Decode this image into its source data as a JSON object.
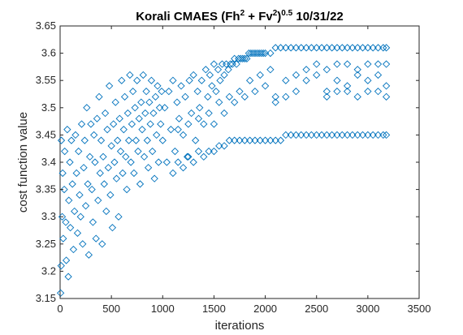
{
  "chart_data": {
    "type": "scatter",
    "title_parts": [
      {
        "text": "Korali CMAES (Fh",
        "sup": false
      },
      {
        "text": "2",
        "sup": true
      },
      {
        "text": " + Fv",
        "sup": false
      },
      {
        "text": "2",
        "sup": true
      },
      {
        "text": ")",
        "sup": false
      },
      {
        "text": "0.5",
        "sup": true
      },
      {
        "text": " 10/31/22",
        "sup": false
      }
    ],
    "xlabel": "iterations",
    "ylabel": "cost function value",
    "xlim": [
      0,
      3500
    ],
    "ylim": [
      3.15,
      3.65
    ],
    "xticks": [
      "0",
      "500",
      "1000",
      "1500",
      "2000",
      "2500",
      "3000",
      "3500"
    ],
    "yticks": [
      "3.15",
      "3.2",
      "3.25",
      "3.3",
      "3.35",
      "3.4",
      "3.45",
      "3.5",
      "3.55",
      "3.6",
      "3.65"
    ],
    "grid": false,
    "marker": "diamond",
    "color": "#0072BD",
    "series": [
      {
        "values": [
          [
            5,
            3.16
          ],
          [
            10,
            3.21
          ],
          [
            12,
            3.44
          ],
          [
            20,
            3.3
          ],
          [
            25,
            3.38
          ],
          [
            30,
            3.26
          ],
          [
            40,
            3.35
          ],
          [
            45,
            3.42
          ],
          [
            55,
            3.29
          ],
          [
            60,
            3.22
          ],
          [
            70,
            3.46
          ],
          [
            80,
            3.19
          ],
          [
            85,
            3.33
          ],
          [
            95,
            3.4
          ],
          [
            100,
            3.28
          ],
          [
            110,
            3.44
          ],
          [
            120,
            3.36
          ],
          [
            130,
            3.24
          ],
          [
            140,
            3.31
          ],
          [
            150,
            3.45
          ],
          [
            160,
            3.38
          ],
          [
            170,
            3.27
          ],
          [
            180,
            3.42
          ],
          [
            190,
            3.34
          ],
          [
            200,
            3.3
          ],
          [
            210,
            3.47
          ],
          [
            220,
            3.25
          ],
          [
            230,
            3.39
          ],
          [
            240,
            3.44
          ],
          [
            250,
            3.32
          ],
          [
            260,
            3.5
          ],
          [
            270,
            3.36
          ],
          [
            280,
            3.23
          ],
          [
            290,
            3.41
          ],
          [
            300,
            3.47
          ],
          [
            310,
            3.35
          ],
          [
            320,
            3.29
          ],
          [
            330,
            3.45
          ],
          [
            340,
            3.4
          ],
          [
            350,
            3.26
          ],
          [
            360,
            3.48
          ],
          [
            370,
            3.33
          ],
          [
            380,
            3.52
          ],
          [
            390,
            3.38
          ],
          [
            400,
            3.44
          ],
          [
            410,
            3.25
          ],
          [
            420,
            3.41
          ],
          [
            430,
            3.36
          ],
          [
            440,
            3.49
          ],
          [
            450,
            3.31
          ],
          [
            460,
            3.46
          ],
          [
            470,
            3.39
          ],
          [
            480,
            3.54
          ],
          [
            490,
            3.34
          ],
          [
            500,
            3.43
          ],
          [
            510,
            3.28
          ],
          [
            520,
            3.47
          ],
          [
            530,
            3.4
          ],
          [
            540,
            3.51
          ],
          [
            550,
            3.37
          ],
          [
            560,
            3.44
          ],
          [
            570,
            3.3
          ],
          [
            580,
            3.48
          ],
          [
            590,
            3.42
          ],
          [
            600,
            3.55
          ],
          [
            610,
            3.38
          ],
          [
            620,
            3.46
          ],
          [
            630,
            3.52
          ],
          [
            640,
            3.41
          ],
          [
            650,
            3.35
          ],
          [
            660,
            3.49
          ],
          [
            670,
            3.44
          ],
          [
            680,
            3.56
          ],
          [
            690,
            3.4
          ],
          [
            700,
            3.47
          ],
          [
            710,
            3.53
          ],
          [
            720,
            3.38
          ],
          [
            730,
            3.5
          ],
          [
            740,
            3.44
          ],
          [
            750,
            3.55
          ],
          [
            760,
            3.42
          ],
          [
            770,
            3.48
          ],
          [
            780,
            3.36
          ],
          [
            790,
            3.51
          ],
          [
            800,
            3.46
          ],
          [
            810,
            3.56
          ],
          [
            820,
            3.41
          ],
          [
            830,
            3.49
          ],
          [
            840,
            3.53
          ],
          [
            850,
            3.44
          ],
          [
            860,
            3.39
          ],
          [
            870,
            3.51
          ],
          [
            880,
            3.47
          ],
          [
            890,
            3.55
          ],
          [
            900,
            3.42
          ],
          [
            910,
            3.49
          ],
          [
            920,
            3.37
          ],
          [
            930,
            3.52
          ],
          [
            940,
            3.45
          ],
          [
            950,
            3.54
          ],
          [
            960,
            3.4
          ],
          [
            970,
            3.5
          ],
          [
            980,
            3.47
          ],
          [
            990,
            3.53
          ],
          [
            1000,
            3.44
          ],
          [
            1020,
            3.5
          ],
          [
            1040,
            3.4
          ],
          [
            1060,
            3.53
          ],
          [
            1080,
            3.46
          ],
          [
            1100,
            3.55
          ],
          [
            1120,
            3.42
          ],
          [
            1140,
            3.51
          ],
          [
            1160,
            3.48
          ],
          [
            1180,
            3.54
          ],
          [
            1200,
            3.45
          ],
          [
            1220,
            3.52
          ],
          [
            1240,
            3.41
          ],
          [
            1260,
            3.55
          ],
          [
            1280,
            3.49
          ],
          [
            1300,
            3.56
          ],
          [
            1320,
            3.44
          ],
          [
            1340,
            3.53
          ],
          [
            1360,
            3.5
          ],
          [
            1380,
            3.55
          ],
          [
            1400,
            3.47
          ],
          [
            1420,
            3.57
          ],
          [
            1440,
            3.52
          ],
          [
            1460,
            3.56
          ],
          [
            1480,
            3.54
          ],
          [
            1500,
            3.58
          ],
          [
            1520,
            3.53
          ],
          [
            1540,
            3.57
          ],
          [
            1560,
            3.55
          ],
          [
            1580,
            3.58
          ],
          [
            1600,
            3.56
          ],
          [
            1620,
            3.58
          ],
          [
            1640,
            3.57
          ],
          [
            1660,
            3.58
          ],
          [
            1680,
            3.58
          ],
          [
            1700,
            3.59
          ],
          [
            1720,
            3.58
          ],
          [
            1740,
            3.59
          ],
          [
            1760,
            3.59
          ],
          [
            1780,
            3.59
          ],
          [
            1800,
            3.59
          ],
          [
            1820,
            3.59
          ],
          [
            1840,
            3.6
          ],
          [
            1860,
            3.6
          ],
          [
            1880,
            3.6
          ],
          [
            1900,
            3.6
          ],
          [
            1920,
            3.6
          ],
          [
            1940,
            3.6
          ],
          [
            1960,
            3.6
          ],
          [
            1980,
            3.6
          ],
          [
            2000,
            3.6
          ],
          [
            2050,
            3.6
          ],
          [
            2100,
            3.61
          ],
          [
            2150,
            3.61
          ],
          [
            2200,
            3.61
          ],
          [
            2250,
            3.61
          ],
          [
            2300,
            3.61
          ],
          [
            2350,
            3.61
          ],
          [
            2400,
            3.61
          ],
          [
            2450,
            3.61
          ],
          [
            2500,
            3.61
          ],
          [
            2550,
            3.61
          ],
          [
            2600,
            3.61
          ],
          [
            2650,
            3.61
          ],
          [
            2700,
            3.61
          ],
          [
            2750,
            3.61
          ],
          [
            2800,
            3.61
          ],
          [
            2850,
            3.61
          ],
          [
            2900,
            3.61
          ],
          [
            2950,
            3.61
          ],
          [
            3000,
            3.61
          ],
          [
            3050,
            3.61
          ],
          [
            3100,
            3.61
          ],
          [
            3150,
            3.61
          ],
          [
            3180,
            3.61
          ],
          [
            1100,
            3.38
          ],
          [
            1150,
            3.4
          ],
          [
            1200,
            3.39
          ],
          [
            1250,
            3.41
          ],
          [
            1300,
            3.4
          ],
          [
            1350,
            3.42
          ],
          [
            1400,
            3.41
          ],
          [
            1450,
            3.42
          ],
          [
            1500,
            3.42
          ],
          [
            1550,
            3.43
          ],
          [
            1600,
            3.43
          ],
          [
            1650,
            3.44
          ],
          [
            1700,
            3.44
          ],
          [
            1750,
            3.44
          ],
          [
            1800,
            3.44
          ],
          [
            1850,
            3.44
          ],
          [
            1900,
            3.44
          ],
          [
            1950,
            3.44
          ],
          [
            2000,
            3.44
          ],
          [
            2050,
            3.44
          ],
          [
            2100,
            3.44
          ],
          [
            2150,
            3.44
          ],
          [
            2200,
            3.45
          ],
          [
            2250,
            3.45
          ],
          [
            2300,
            3.45
          ],
          [
            2350,
            3.45
          ],
          [
            2400,
            3.45
          ],
          [
            2450,
            3.45
          ],
          [
            2500,
            3.45
          ],
          [
            2550,
            3.45
          ],
          [
            2600,
            3.45
          ],
          [
            2650,
            3.45
          ],
          [
            2700,
            3.45
          ],
          [
            2750,
            3.45
          ],
          [
            2800,
            3.45
          ],
          [
            2850,
            3.45
          ],
          [
            2900,
            3.45
          ],
          [
            2950,
            3.45
          ],
          [
            3000,
            3.45
          ],
          [
            3050,
            3.45
          ],
          [
            3100,
            3.45
          ],
          [
            3150,
            3.45
          ],
          [
            3180,
            3.45
          ],
          [
            1500,
            3.47
          ],
          [
            1600,
            3.49
          ],
          [
            1700,
            3.51
          ],
          [
            1800,
            3.52
          ],
          [
            1900,
            3.53
          ],
          [
            2000,
            3.54
          ],
          [
            2100,
            3.52
          ],
          [
            2200,
            3.55
          ],
          [
            2300,
            3.56
          ],
          [
            2400,
            3.55
          ],
          [
            2500,
            3.56
          ],
          [
            2600,
            3.53
          ],
          [
            2700,
            3.55
          ],
          [
            2800,
            3.54
          ],
          [
            2900,
            3.56
          ],
          [
            3000,
            3.55
          ],
          [
            3100,
            3.56
          ],
          [
            3180,
            3.54
          ],
          [
            2100,
            3.51
          ],
          [
            2200,
            3.52
          ],
          [
            2300,
            3.53
          ],
          [
            2400,
            3.57
          ],
          [
            2500,
            3.58
          ],
          [
            2600,
            3.57
          ],
          [
            2700,
            3.58
          ],
          [
            2800,
            3.58
          ],
          [
            2900,
            3.57
          ],
          [
            3000,
            3.58
          ],
          [
            3100,
            3.58
          ],
          [
            3180,
            3.58
          ],
          [
            2600,
            3.52
          ],
          [
            2700,
            3.53
          ],
          [
            2800,
            3.53
          ],
          [
            2900,
            3.52
          ],
          [
            3000,
            3.53
          ],
          [
            3100,
            3.53
          ],
          [
            3180,
            3.52
          ],
          [
            1150,
            3.46
          ],
          [
            1250,
            3.47
          ],
          [
            1350,
            3.48
          ],
          [
            1450,
            3.49
          ],
          [
            1550,
            3.51
          ],
          [
            1650,
            3.52
          ],
          [
            1750,
            3.53
          ],
          [
            1850,
            3.55
          ],
          [
            1950,
            3.56
          ],
          [
            2050,
            3.57
          ]
        ]
      }
    ]
  }
}
